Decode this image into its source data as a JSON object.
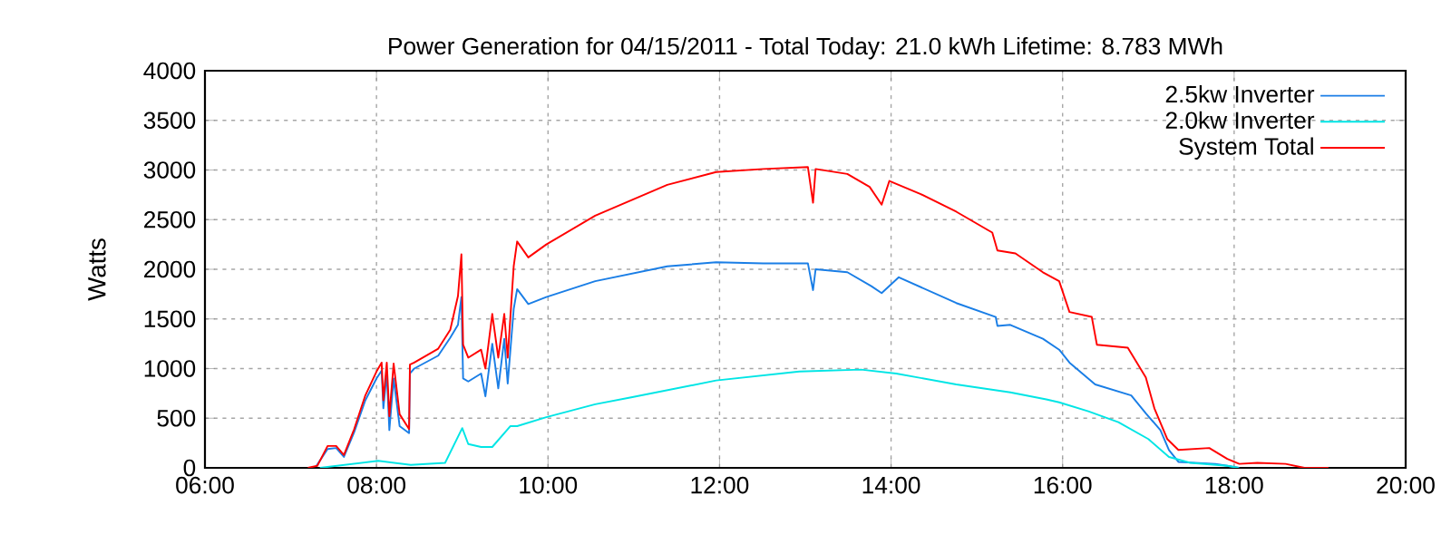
{
  "chart_data": {
    "type": "line",
    "title": "Power Generation for 04/15/2011 - Total Today: 21.0 kWh Lifetime: 8.783 MWh",
    "ylabel": "Watts",
    "xlim": [
      6,
      20
    ],
    "xticks": [
      {
        "value": 6,
        "label": "06:00"
      },
      {
        "value": 8,
        "label": "08:00"
      },
      {
        "value": 10,
        "label": "10:00"
      },
      {
        "value": 12,
        "label": "12:00"
      },
      {
        "value": 14,
        "label": "14:00"
      },
      {
        "value": 16,
        "label": "16:00"
      },
      {
        "value": 18,
        "label": "18:00"
      },
      {
        "value": 20,
        "label": "20:00"
      }
    ],
    "ylim": [
      0,
      4000
    ],
    "yticks": [
      0,
      500,
      1000,
      1500,
      2000,
      2500,
      3000,
      3500,
      4000
    ],
    "grid": true,
    "legend": "top right",
    "marker": "none",
    "line_style": "solid",
    "series": [
      {
        "name": "2.5kw Inverter",
        "color": "#1a7ee6",
        "x": [
          7.3,
          7.43,
          7.53,
          7.62,
          7.74,
          7.87,
          8.0,
          8.06,
          8.08,
          8.12,
          8.15,
          8.2,
          8.27,
          8.38,
          8.39,
          8.44,
          8.72,
          8.86,
          8.95,
          8.99,
          9.01,
          9.07,
          9.22,
          9.27,
          9.35,
          9.42,
          9.49,
          9.53,
          9.6,
          9.64,
          9.77,
          9.98,
          10.55,
          11.39,
          11.96,
          12.51,
          13.03,
          13.09,
          13.12,
          13.49,
          13.77,
          13.89,
          14.09,
          14.76,
          15.22,
          15.24,
          15.39,
          15.77,
          15.96,
          16.08,
          16.38,
          16.8,
          16.97,
          17.14,
          17.24,
          17.35,
          17.78,
          17.92,
          18.06
        ],
        "values": [
          20,
          190,
          200,
          110,
          360,
          680,
          900,
          980,
          600,
          950,
          380,
          900,
          420,
          350,
          950,
          1000,
          1130,
          1310,
          1440,
          1720,
          900,
          870,
          950,
          720,
          1250,
          800,
          1300,
          850,
          1600,
          1800,
          1650,
          1720,
          1880,
          2030,
          2070,
          2060,
          2060,
          1790,
          2000,
          1970,
          1830,
          1760,
          1920,
          1660,
          1520,
          1430,
          1440,
          1300,
          1190,
          1060,
          840,
          730,
          550,
          380,
          180,
          60,
          40,
          20,
          0
        ]
      },
      {
        "name": "2.0kw Inverter",
        "color": "#00e5e5",
        "x": [
          7.34,
          8.02,
          8.4,
          8.8,
          9.0,
          9.07,
          9.22,
          9.35,
          9.56,
          9.64,
          9.98,
          10.55,
          10.97,
          11.96,
          12.93,
          13.65,
          14.06,
          14.76,
          15.39,
          15.81,
          15.96,
          16.3,
          16.65,
          17.0,
          17.24,
          17.49,
          17.92,
          18.05
        ],
        "values": [
          0,
          70,
          30,
          50,
          400,
          240,
          210,
          210,
          420,
          420,
          510,
          640,
          710,
          880,
          970,
          990,
          950,
          840,
          760,
          690,
          660,
          570,
          460,
          290,
          110,
          50,
          20,
          0
        ]
      },
      {
        "name": "System Total",
        "color": "#ff0000",
        "x": [
          7.2,
          7.31,
          7.43,
          7.53,
          7.62,
          7.74,
          7.87,
          8.0,
          8.06,
          8.08,
          8.12,
          8.15,
          8.2,
          8.27,
          8.38,
          8.39,
          8.44,
          8.72,
          8.86,
          8.95,
          8.99,
          9.01,
          9.07,
          9.22,
          9.27,
          9.35,
          9.42,
          9.49,
          9.53,
          9.6,
          9.64,
          9.77,
          9.98,
          10.55,
          11.39,
          11.96,
          12.51,
          13.03,
          13.09,
          13.12,
          13.49,
          13.75,
          13.89,
          13.98,
          14.34,
          14.76,
          15.18,
          15.24,
          15.45,
          15.77,
          15.96,
          16.08,
          16.34,
          16.4,
          16.76,
          16.97,
          17.07,
          17.22,
          17.35,
          17.71,
          17.92,
          18.06,
          18.27,
          18.6,
          18.82,
          19.1
        ],
        "values": [
          0,
          20,
          220,
          220,
          130,
          390,
          730,
          970,
          1060,
          680,
          1060,
          520,
          1050,
          540,
          390,
          1040,
          1060,
          1200,
          1390,
          1730,
          2150,
          1240,
          1110,
          1190,
          1000,
          1550,
          1110,
          1550,
          1110,
          2030,
          2280,
          2120,
          2250,
          2540,
          2850,
          2980,
          3010,
          3030,
          2670,
          3010,
          2960,
          2830,
          2650,
          2890,
          2760,
          2580,
          2370,
          2190,
          2160,
          1970,
          1880,
          1570,
          1520,
          1240,
          1210,
          910,
          600,
          290,
          180,
          200,
          90,
          40,
          50,
          40,
          0,
          0
        ]
      }
    ]
  }
}
